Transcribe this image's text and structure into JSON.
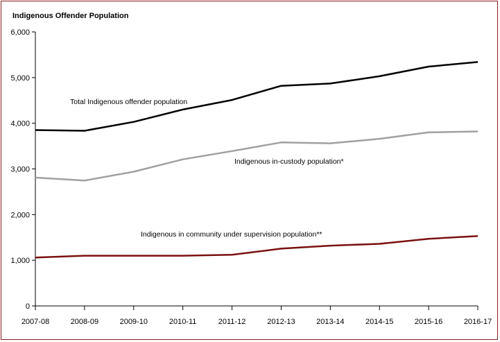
{
  "chart_data": {
    "type": "line",
    "title": "Indigenous Offender Population",
    "xlabel": "",
    "ylabel": "",
    "ylim": [
      0,
      6000
    ],
    "yticks": [
      "0",
      "1,000",
      "2,000",
      "3,000",
      "4,000",
      "5,000",
      "6,000"
    ],
    "ytick_values": [
      0,
      1000,
      2000,
      3000,
      4000,
      5000,
      6000
    ],
    "categories": [
      "2007-08",
      "2008-09",
      "2009-10",
      "2010-11",
      "2011-12",
      "2012-13",
      "2013-14",
      "2014-15",
      "2015-16",
      "2016-17"
    ],
    "series": [
      {
        "name": "Total Indigenous offender population",
        "color": "#000000",
        "values": [
          3850,
          3835,
          4030,
          4300,
          4510,
          4820,
          4870,
          5030,
          5240,
          5340
        ]
      },
      {
        "name": "Indigenous in-custody population*",
        "color": "#a0a0a0",
        "values": [
          2810,
          2745,
          2940,
          3210,
          3390,
          3580,
          3560,
          3660,
          3800,
          3820
        ]
      },
      {
        "name": "Indigenous in community under supervision population**",
        "color": "#7a1010",
        "values": [
          1060,
          1100,
          1100,
          1100,
          1120,
          1255,
          1320,
          1360,
          1470,
          1530
        ]
      }
    ]
  }
}
